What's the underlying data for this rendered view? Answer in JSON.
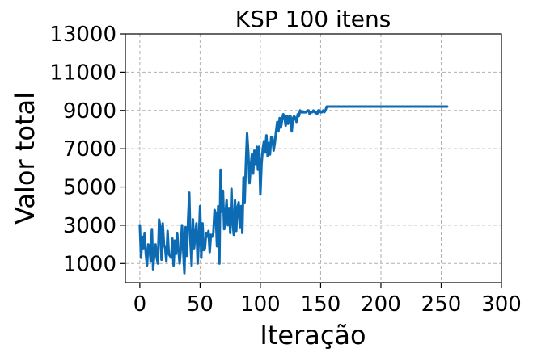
{
  "chart_data": {
    "type": "line",
    "title": "KSP 100 itens",
    "xlabel": "Iteração",
    "ylabel": "Valor total",
    "xlim": [
      -12,
      300
    ],
    "ylim": [
      0,
      13000
    ],
    "xticks": [
      0,
      50,
      100,
      150,
      200,
      250,
      300
    ],
    "yticks": [
      1000,
      3000,
      5000,
      7000,
      9000,
      11000,
      13000
    ],
    "grid": true,
    "line_color": "#0c6bb3",
    "series": [
      {
        "x": [
          0,
          1,
          2,
          3,
          4,
          5,
          6,
          7,
          8,
          9,
          10,
          11,
          12,
          13,
          14,
          15,
          16,
          17,
          18,
          19,
          20,
          21,
          22,
          23,
          24,
          25,
          26,
          27,
          28,
          29,
          30,
          31,
          32,
          33,
          34,
          35,
          36,
          37,
          38,
          39,
          40,
          41,
          42,
          43,
          44,
          45,
          46,
          47,
          48,
          49,
          50,
          51,
          52,
          53,
          54,
          55,
          56,
          57,
          58,
          59,
          60,
          61,
          62,
          63,
          64,
          65,
          66,
          67,
          68,
          69,
          70,
          71,
          72,
          73,
          74,
          75,
          76,
          77,
          78,
          79,
          80,
          81,
          82,
          83,
          84,
          85,
          86,
          87,
          88,
          89,
          90,
          91,
          92,
          93,
          94,
          95,
          96,
          97,
          98,
          99,
          100,
          101,
          102,
          103,
          104,
          105,
          106,
          107,
          108,
          109,
          110,
          111,
          112,
          113,
          114,
          115,
          116,
          117,
          118,
          119,
          120,
          121,
          122,
          123,
          124,
          125,
          126,
          127,
          128,
          129,
          130,
          131,
          132,
          133,
          134,
          135,
          136,
          137,
          138,
          139,
          140,
          141,
          142,
          143,
          144,
          145,
          146,
          147,
          148,
          149,
          150,
          151,
          152,
          153,
          154,
          155,
          255
        ],
        "y": [
          3000,
          1300,
          2400,
          1800,
          2600,
          1500,
          900,
          2000,
          1900,
          1100,
          2800,
          700,
          1500,
          2000,
          1300,
          1000,
          3300,
          2900,
          1200,
          3100,
          2000,
          1800,
          1100,
          2700,
          1500,
          1400,
          1300,
          2300,
          900,
          2200,
          1500,
          2600,
          1700,
          1000,
          1800,
          3000,
          1700,
          500,
          2900,
          1400,
          3200,
          4700,
          2100,
          900,
          3300,
          1800,
          2500,
          3100,
          1000,
          2300,
          4000,
          1300,
          3100,
          1700,
          1800,
          2600,
          2400,
          2700,
          1600,
          2500,
          2400,
          2600,
          3800,
          3600,
          1900,
          4000,
          1000,
          5900,
          3700,
          4800,
          2800,
          3500,
          4300,
          3000,
          3900,
          2600,
          4900,
          3200,
          2500,
          4300,
          2700,
          3900,
          4200,
          2900,
          4000,
          2600,
          5500,
          4200,
          6200,
          7800,
          6800,
          5200,
          6100,
          6700,
          5700,
          6900,
          6200,
          7100,
          5900,
          7100,
          4600,
          6200,
          7000,
          7400,
          6800,
          7700,
          6600,
          7300,
          6700,
          7600,
          7600,
          6900,
          7300,
          7900,
          8400,
          7900,
          8600,
          8100,
          8500,
          8800,
          8700,
          8200,
          8700,
          8300,
          8700,
          8700,
          7900,
          8600,
          8700,
          8600,
          8400,
          8800,
          8700,
          9000,
          8900,
          8900,
          8900,
          8900,
          8900,
          9000,
          9000,
          8800,
          8900,
          8900,
          9000,
          8900,
          8900,
          8800,
          9000,
          9000,
          8900,
          8900,
          9000,
          8900,
          9000,
          9200,
          9200
        ]
      }
    ]
  }
}
